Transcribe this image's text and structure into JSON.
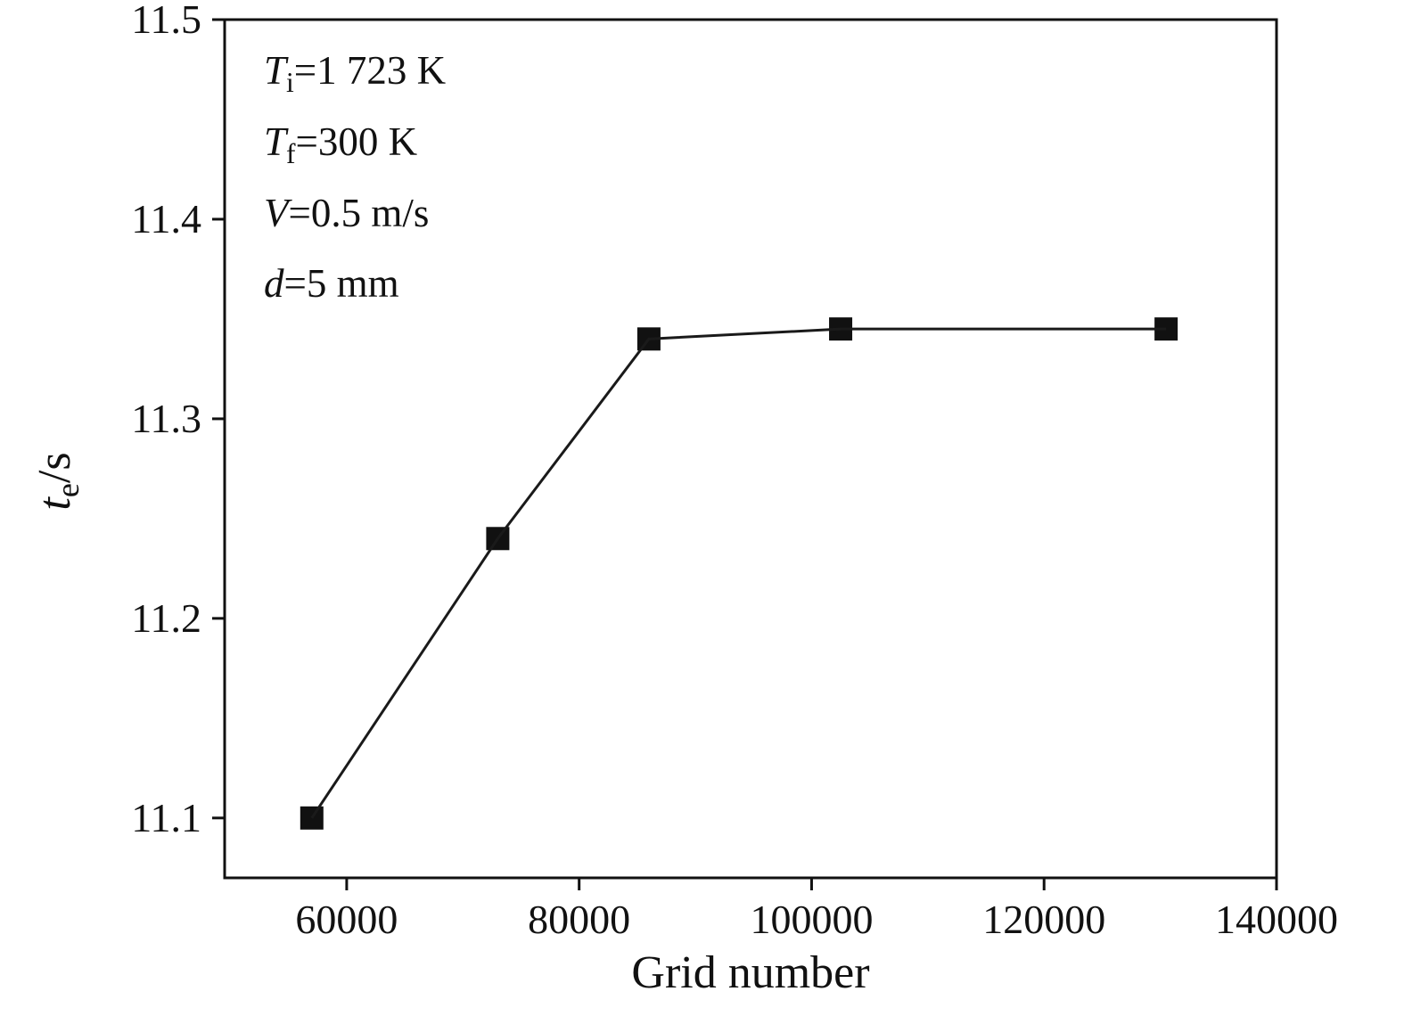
{
  "chart_data": {
    "type": "line",
    "x": [
      57000,
      73000,
      86000,
      102500,
      130500
    ],
    "y": [
      11.1,
      11.24,
      11.34,
      11.345,
      11.345
    ],
    "xlabel": "Grid number",
    "ylabel_main": "t",
    "ylabel_sub": "e",
    "ylabel_unit": "/s",
    "xlim": [
      49500,
      140000
    ],
    "ylim": [
      11.07,
      11.5
    ],
    "xticks": [
      60000,
      80000,
      100000,
      120000,
      140000
    ],
    "yticks": [
      11.1,
      11.2,
      11.3,
      11.4,
      11.5
    ],
    "grid": false,
    "legend": null,
    "marker": "square",
    "marker_size": 26,
    "line_color": "#1a1a1a",
    "marker_color": "#111111",
    "axis_color": "#111111",
    "annotations": [
      {
        "var": "T",
        "sub": "i",
        "rest": "=1 723 K"
      },
      {
        "var": "T",
        "sub": "f",
        "rest": "=300 K"
      },
      {
        "var": "V",
        "sub": "",
        "rest": "=0.5 m/s"
      },
      {
        "var": "d",
        "sub": "",
        "rest": "=5 mm"
      }
    ]
  }
}
